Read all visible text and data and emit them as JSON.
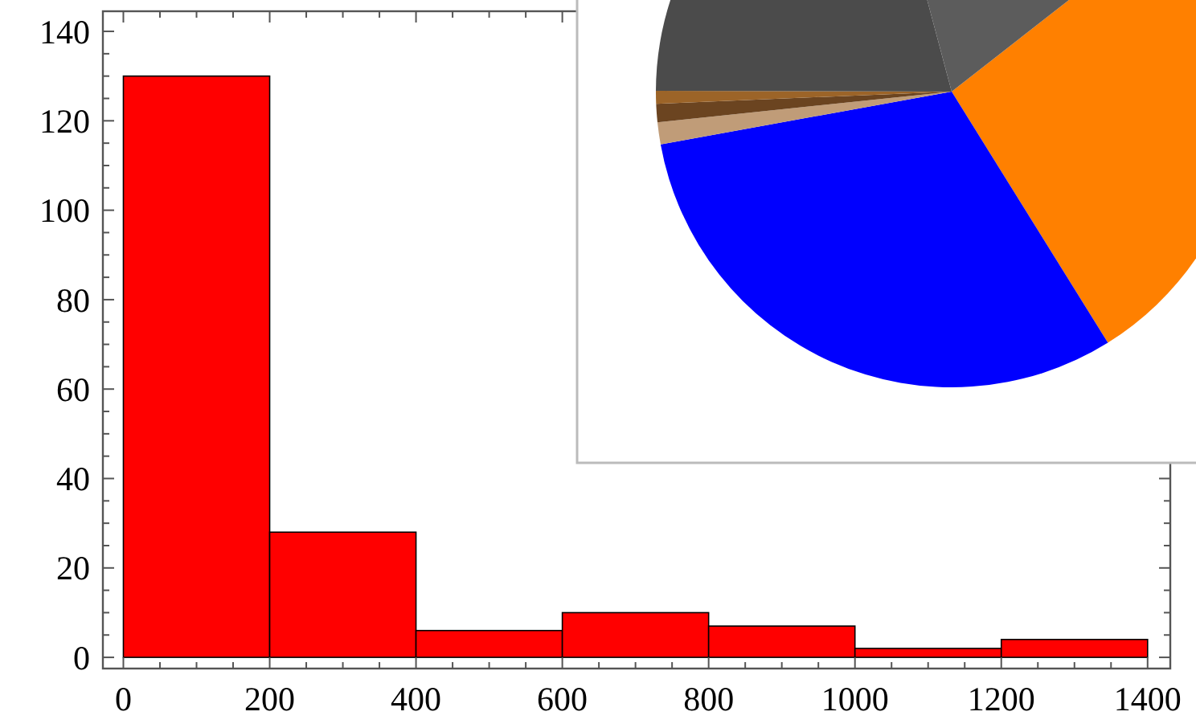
{
  "chart_data": [
    {
      "type": "histogram",
      "bins": [
        0,
        200,
        400,
        600,
        800,
        1000,
        1200,
        1400
      ],
      "values": [
        130,
        28,
        6,
        10,
        7,
        2,
        4
      ],
      "color": "#ff0000",
      "xlim": [
        -28,
        1431
      ],
      "ylim": [
        -2.5,
        144.5
      ],
      "xticks": [
        0,
        200,
        400,
        600,
        800,
        1000,
        1200,
        1400
      ],
      "yticks": [
        0,
        20,
        40,
        60,
        80,
        100,
        120,
        140
      ],
      "grid": false
    },
    {
      "type": "pie",
      "categories": [
        null,
        null,
        null,
        null,
        null,
        null,
        null
      ],
      "values": [
        26.7,
        31.0,
        1.2,
        1.0,
        0.7,
        20.8,
        18.6
      ],
      "colors": [
        "#ff8000",
        "#0000ff",
        "#c09c78",
        "#6b4420",
        "#9c6428",
        "#4b4b4b",
        "#5c5c5c"
      ]
    }
  ]
}
